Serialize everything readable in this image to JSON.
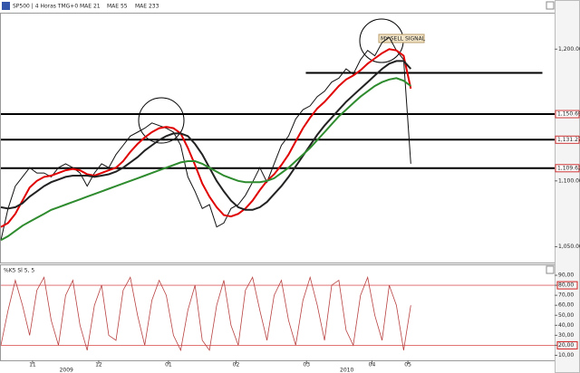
{
  "chart_data": [
    {
      "type": "line",
      "title": "SP500 | 4 Horas TMG+0",
      "x": [
        0,
        1,
        2,
        3,
        4,
        5,
        6,
        7,
        8,
        9,
        10,
        11,
        12,
        13,
        14,
        15,
        16,
        17,
        18,
        19,
        20,
        21,
        22,
        23,
        24,
        25,
        26,
        27,
        28,
        29,
        30,
        31,
        32,
        33,
        34,
        35,
        36,
        37,
        38,
        39,
        40,
        41,
        42,
        43,
        44,
        45,
        46,
        47,
        48,
        49,
        50,
        51,
        52,
        53,
        54,
        55,
        56,
        57
      ],
      "xlim": [
        0,
        77
      ],
      "xticks": [
        {
          "value": 4.4,
          "label": "11"
        },
        {
          "value": 13.6,
          "label": "12"
        },
        {
          "value": 23.3,
          "label": "01"
        },
        {
          "value": 32.7,
          "label": "02"
        },
        {
          "value": 42.5,
          "label": "03"
        },
        {
          "value": 51.6,
          "label": "04"
        },
        {
          "value": 56.6,
          "label": "05"
        }
      ],
      "year_labels": [
        {
          "value": 9.1,
          "label": "2009"
        },
        {
          "value": 48.1,
          "label": "2010"
        }
      ],
      "ylim": [
        1038,
        1227
      ],
      "yticks": [
        {
          "value": 1050,
          "label": "1,050.00"
        },
        {
          "value": 1100,
          "label": "1,100.00"
        },
        {
          "value": 1200,
          "label": "1,200.00"
        }
      ],
      "series": [
        {
          "name": "SP500 | 4 Horas TMG+0",
          "color": "#111111",
          "values": [
            1055,
            1079,
            1096,
            1103,
            1110,
            1106,
            1106,
            1103,
            1110,
            1113,
            1110,
            1106,
            1096,
            1106,
            1113,
            1110,
            1120,
            1127,
            1134,
            1137,
            1140,
            1144,
            1142,
            1140,
            1137,
            1127,
            1103,
            1092,
            1079,
            1082,
            1065,
            1068,
            1079,
            1082,
            1089,
            1099,
            1110,
            1099,
            1113,
            1127,
            1134,
            1147,
            1154,
            1157,
            1164,
            1168,
            1175,
            1178,
            1185,
            1181,
            1192,
            1199,
            1195,
            1205,
            1209,
            1199,
            1192,
            1113
          ]
        },
        {
          "name": "MAE 21",
          "color": "#e00000",
          "values": [
            1065,
            1068,
            1075,
            1085,
            1095,
            1100,
            1103,
            1104,
            1106,
            1108,
            1109,
            1108,
            1105,
            1104,
            1106,
            1108,
            1110,
            1115,
            1122,
            1128,
            1133,
            1137,
            1140,
            1141,
            1140,
            1136,
            1125,
            1112,
            1098,
            1088,
            1080,
            1074,
            1073,
            1075,
            1079,
            1085,
            1093,
            1100,
            1105,
            1112,
            1120,
            1130,
            1140,
            1148,
            1155,
            1160,
            1166,
            1172,
            1177,
            1180,
            1184,
            1189,
            1193,
            1197,
            1200,
            1199,
            1195,
            1170
          ]
        },
        {
          "name": "MAE 55",
          "color": "#222222",
          "values": [
            1080,
            1079,
            1080,
            1083,
            1088,
            1092,
            1096,
            1099,
            1101,
            1103,
            1104,
            1104,
            1104,
            1103,
            1104,
            1105,
            1107,
            1110,
            1114,
            1118,
            1123,
            1127,
            1131,
            1134,
            1136,
            1136,
            1134,
            1128,
            1120,
            1110,
            1100,
            1092,
            1085,
            1080,
            1078,
            1078,
            1080,
            1084,
            1090,
            1096,
            1103,
            1111,
            1119,
            1127,
            1135,
            1142,
            1148,
            1154,
            1160,
            1165,
            1170,
            1175,
            1180,
            1185,
            1189,
            1191,
            1191,
            1185
          ]
        },
        {
          "name": "MAE 233",
          "color": "#2e8b2e",
          "values": [
            1055,
            1058,
            1062,
            1066,
            1069,
            1072,
            1075,
            1078,
            1080,
            1082,
            1084,
            1086,
            1088,
            1090,
            1092,
            1094,
            1096,
            1098,
            1100,
            1102,
            1104,
            1106,
            1108,
            1110,
            1112,
            1114,
            1115,
            1115,
            1113,
            1110,
            1107,
            1104,
            1102,
            1100,
            1099,
            1099,
            1099,
            1100,
            1102,
            1106,
            1110,
            1115,
            1120,
            1125,
            1131,
            1137,
            1143,
            1149,
            1154,
            1159,
            1164,
            1168,
            1172,
            1175,
            1177,
            1178,
            1176,
            1172
          ]
        }
      ],
      "levels": [
        {
          "value": 1150.69,
          "label": "1,150.69"
        },
        {
          "value": 1131.27,
          "label": "1,131.27"
        },
        {
          "value": 1109.62,
          "label": "1,109.62"
        },
        {
          "value": 1182,
          "xlim": [
            42.4,
            75.3
          ]
        }
      ],
      "annotation": "MY SELL SIGNAL"
    },
    {
      "type": "line",
      "title": "%K5 Sl 5, 5",
      "ylim": [
        5,
        100
      ],
      "yticks": [
        {
          "value": 10,
          "label": "10,00"
        },
        {
          "value": 20,
          "label": "20,00"
        },
        {
          "value": 30,
          "label": "30,00"
        },
        {
          "value": 40,
          "label": "40,00"
        },
        {
          "value": 50,
          "label": "50,00"
        },
        {
          "value": 60,
          "label": "60,00"
        },
        {
          "value": 70,
          "label": "70,00"
        },
        {
          "value": 80,
          "label": "80,00"
        },
        {
          "value": 90,
          "label": "90,00"
        }
      ],
      "levels": [
        80,
        20
      ],
      "level_color": "#d02020",
      "series": [
        {
          "name": "%K5 Sl 5, 5",
          "color": "#b84040",
          "values": [
            20,
            55,
            85,
            60,
            30,
            75,
            88,
            45,
            20,
            70,
            85,
            40,
            15,
            60,
            80,
            30,
            25,
            75,
            88,
            50,
            20,
            65,
            85,
            70,
            30,
            15,
            55,
            80,
            25,
            15,
            60,
            85,
            40,
            20,
            75,
            88,
            55,
            25,
            70,
            85,
            45,
            20,
            65,
            88,
            60,
            25,
            80,
            85,
            35,
            20,
            70,
            88,
            50,
            25,
            80,
            60,
            15,
            60
          ]
        }
      ]
    }
  ]
}
